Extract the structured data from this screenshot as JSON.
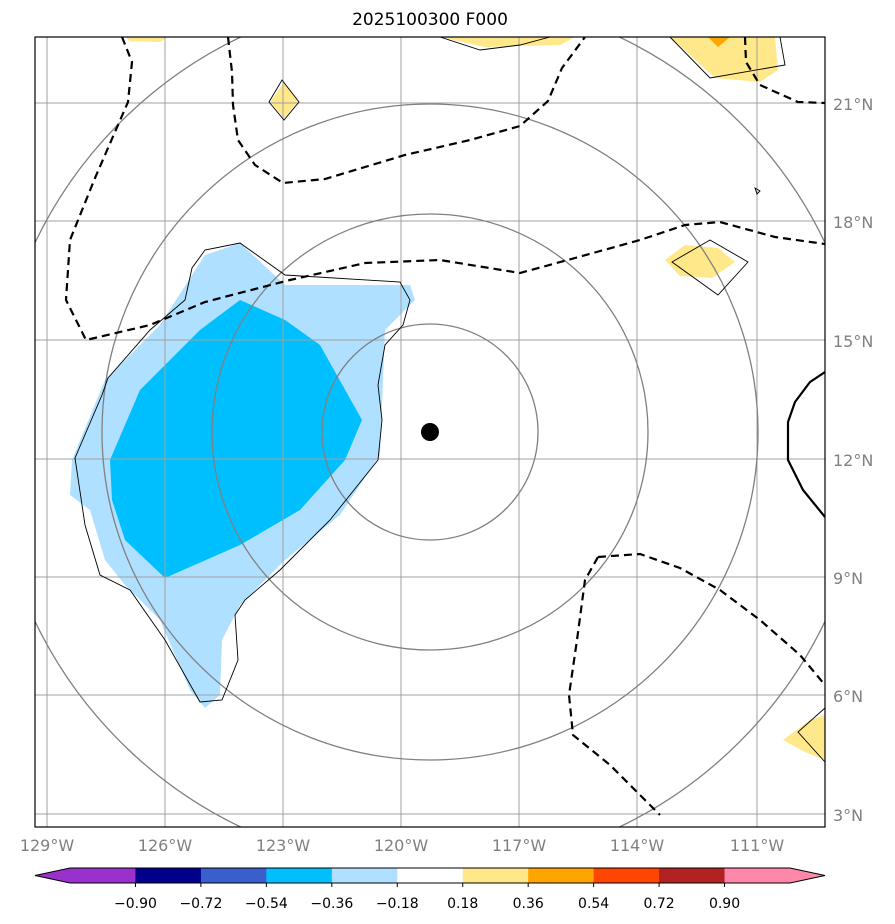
{
  "title": "2025100300 F000",
  "map": {
    "lon_ticks": [
      "129°W",
      "126°W",
      "123°W",
      "120°W",
      "117°W",
      "114°W",
      "111°W"
    ],
    "lat_ticks": [
      "21°N",
      "18°N",
      "15°N",
      "12°N",
      "9°N",
      "6°N",
      "3°N"
    ],
    "center_marker": {
      "lon": -119.3,
      "lat": 12.7
    },
    "colors": {
      "gridline": "#a0a0a0",
      "range_ring": "#808080",
      "coastline": "#000000",
      "negative_light": "#b0e0ff",
      "negative_mid": "#00bfff",
      "positive_light": "#ffe88a",
      "positive_mid": "#ffa500"
    }
  },
  "colorbar": {
    "labels": [
      "−0.90",
      "−0.72",
      "−0.54",
      "−0.36",
      "−0.18",
      "0.18",
      "0.36",
      "0.54",
      "0.72",
      "0.90"
    ],
    "colors": [
      "#9932cc",
      "#00008b",
      "#3a5fcd",
      "#00bfff",
      "#b0e0ff",
      "#ffffff",
      "#ffe88a",
      "#ffa500",
      "#ff4500",
      "#b22222",
      "#ff88aa"
    ],
    "under_color": "#9932cc",
    "over_color": "#ff88aa"
  }
}
